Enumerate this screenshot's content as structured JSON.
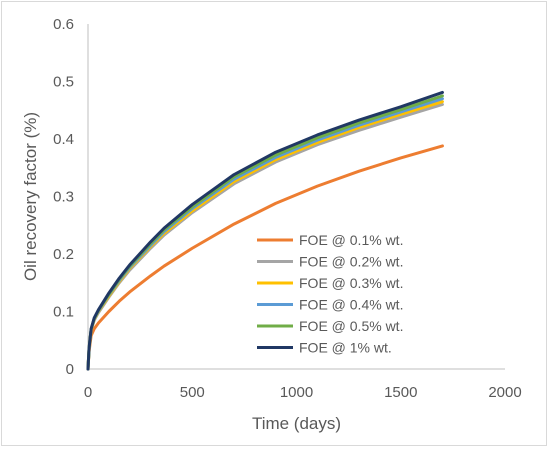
{
  "chart_data": {
    "type": "line",
    "title": "",
    "xlabel": "Time (days)",
    "ylabel": "Oil recovery factor (%)",
    "xlim": [
      0,
      2000
    ],
    "ylim": [
      0,
      0.6
    ],
    "xticks": [
      "0",
      "500",
      "1000",
      "1500",
      "2000"
    ],
    "yticks": [
      "0",
      "0.1",
      "0.2",
      "0.3",
      "0.4",
      "0.5",
      "0.6"
    ],
    "grid": false,
    "legend_position": "bottom-right",
    "x": [
      0,
      5,
      15,
      30,
      50,
      100,
      150,
      200,
      300,
      365,
      500,
      700,
      900,
      1100,
      1300,
      1500,
      1700
    ],
    "series": [
      {
        "name": "FOE @ 0.1% wt.",
        "color": "#ED7D31",
        "values": [
          0,
          0.03,
          0.058,
          0.07,
          0.08,
          0.1,
          0.118,
          0.134,
          0.162,
          0.179,
          0.21,
          0.252,
          0.288,
          0.318,
          0.344,
          0.367,
          0.388
        ]
      },
      {
        "name": "FOE @ 0.2% wt.",
        "color": "#A5A5A5",
        "values": [
          0,
          0.035,
          0.068,
          0.085,
          0.098,
          0.125,
          0.15,
          0.172,
          0.21,
          0.233,
          0.272,
          0.322,
          0.36,
          0.39,
          0.415,
          0.438,
          0.46
        ]
      },
      {
        "name": "FOE @ 0.3% wt.",
        "color": "#FFC000",
        "values": [
          0,
          0.035,
          0.068,
          0.086,
          0.1,
          0.127,
          0.152,
          0.175,
          0.213,
          0.236,
          0.275,
          0.326,
          0.364,
          0.394,
          0.42,
          0.443,
          0.465
        ]
      },
      {
        "name": "FOE @ 0.4% wt.",
        "color": "#5B9BD5",
        "values": [
          0,
          0.035,
          0.069,
          0.087,
          0.101,
          0.129,
          0.154,
          0.177,
          0.215,
          0.239,
          0.279,
          0.33,
          0.368,
          0.398,
          0.424,
          0.447,
          0.47
        ]
      },
      {
        "name": "FOE @ 0.5% wt.",
        "color": "#70AD47",
        "values": [
          0,
          0.036,
          0.069,
          0.088,
          0.102,
          0.13,
          0.156,
          0.179,
          0.218,
          0.242,
          0.282,
          0.334,
          0.372,
          0.402,
          0.428,
          0.451,
          0.475
        ]
      },
      {
        "name": "FOE @ 1% wt.",
        "color": "#203864",
        "values": [
          0,
          0.036,
          0.07,
          0.089,
          0.103,
          0.132,
          0.158,
          0.181,
          0.221,
          0.245,
          0.286,
          0.338,
          0.377,
          0.407,
          0.433,
          0.456,
          0.481
        ]
      }
    ]
  }
}
